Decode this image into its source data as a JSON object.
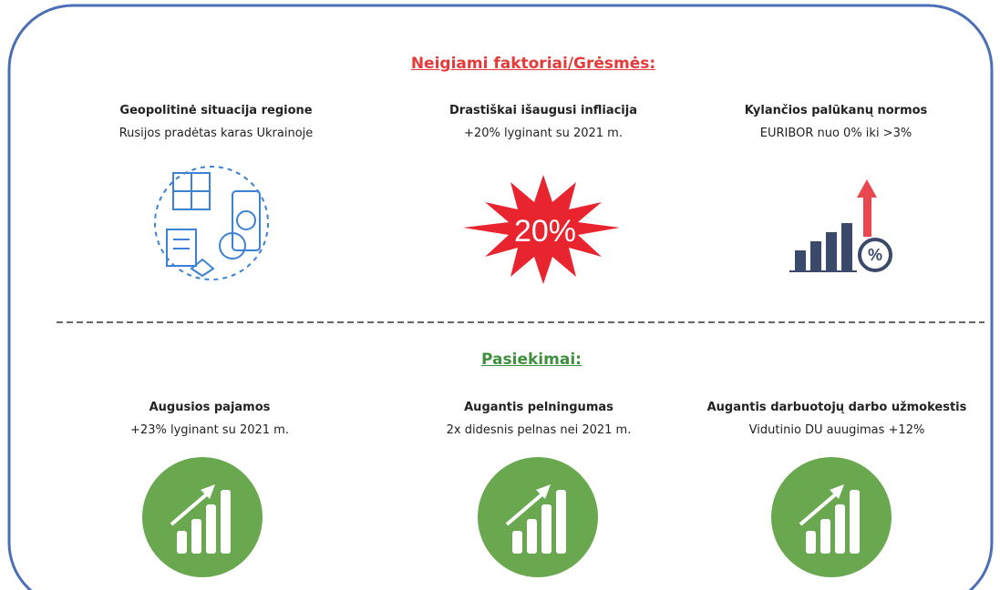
{
  "negative": {
    "title": "Neigiami faktoriai/Grėsmės:",
    "items": [
      {
        "title": "Geopolitinė situacija regione",
        "subtitle": "Rusijos pradėtas karas Ukrainoje"
      },
      {
        "title": "Drastiškai išaugusi infliacija",
        "subtitle": "+20% lyginant su 2021 m.",
        "badge": "20%"
      },
      {
        "title": "Kylančios palūkanų normos",
        "subtitle": "EURIBOR nuo 0% iki >3%",
        "badge": "%"
      }
    ]
  },
  "achievements": {
    "title": "Pasiekimai:",
    "items": [
      {
        "title": "Augusios pajamos",
        "subtitle": "+23% lyginant su 2021 m."
      },
      {
        "title": "Augantis pelningumas",
        "subtitle": "2x didesnis pelnas nei 2021 m."
      },
      {
        "title": "Augantis darbuotojų darbo užmokestis",
        "subtitle": "Vidutinio DU auugimas +12%"
      }
    ]
  }
}
